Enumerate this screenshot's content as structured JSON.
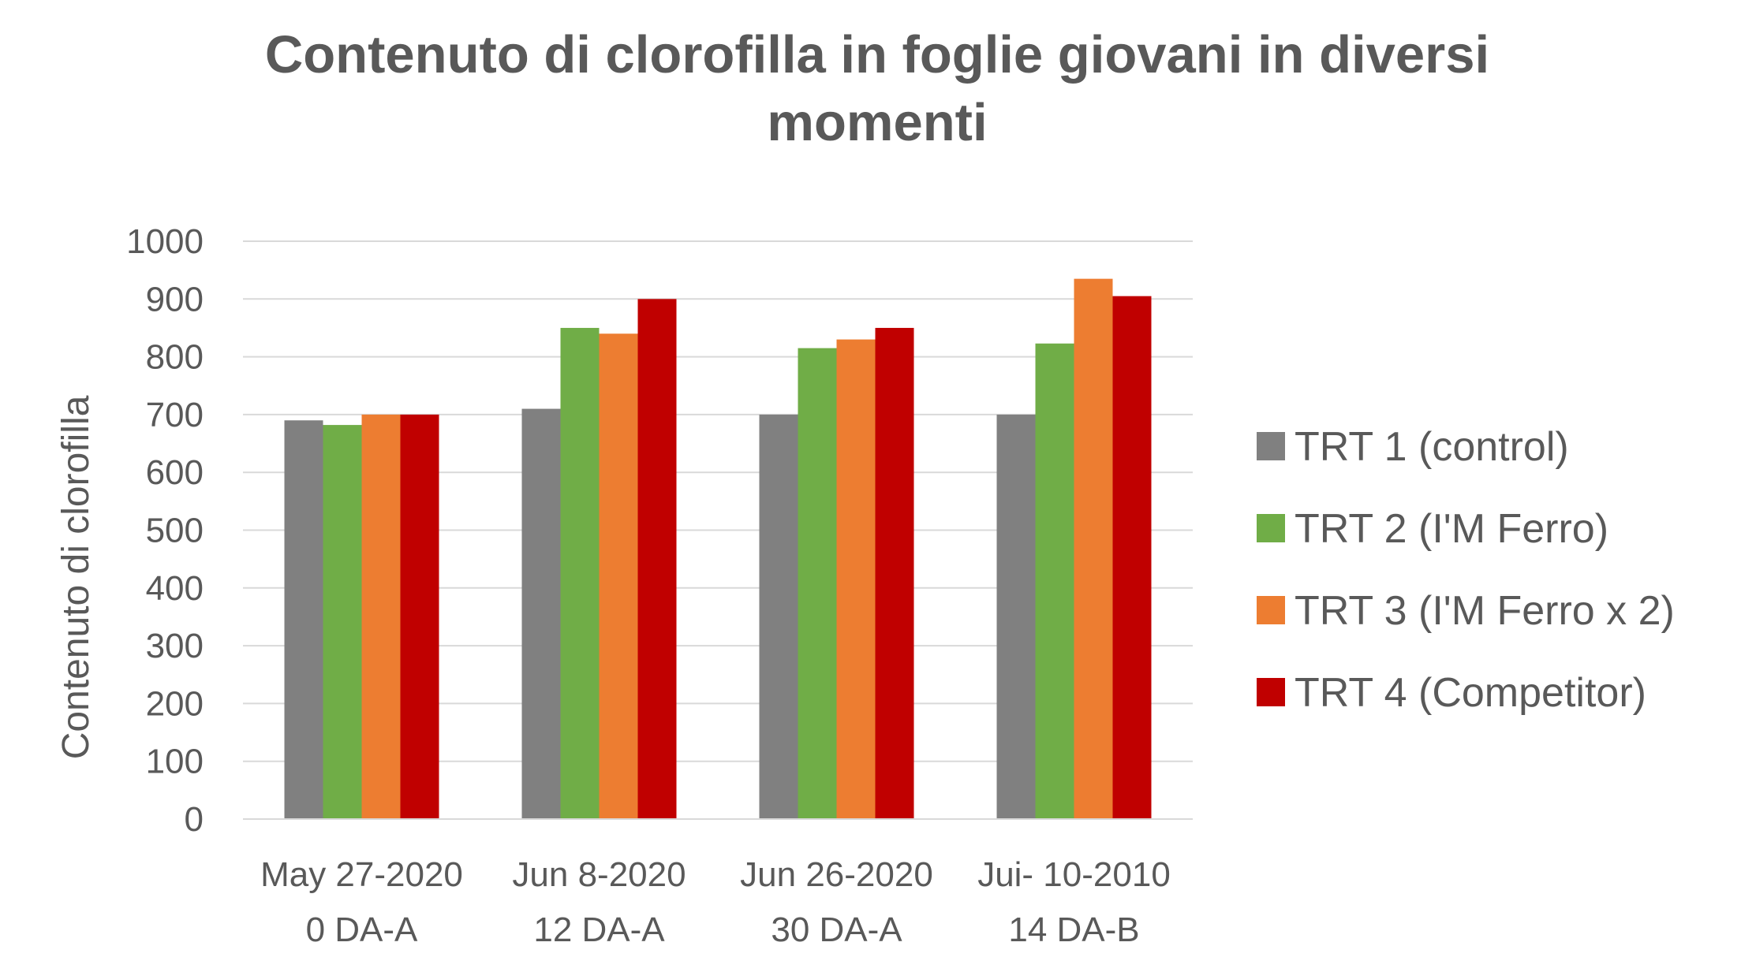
{
  "chart_data": {
    "type": "bar",
    "title_lines": [
      "Contenuto di clorofilla in foglie giovani in diversi",
      "momenti"
    ],
    "ylabel": "Contenuto di clorofilla",
    "xlabel": "",
    "ylim": [
      0,
      1000
    ],
    "yticks": [
      0,
      100,
      200,
      300,
      400,
      500,
      600,
      700,
      800,
      900,
      1000
    ],
    "grid": true,
    "legend_position": "right",
    "categories": [
      {
        "line1": "May 27-2020",
        "line2": "0 DA-A"
      },
      {
        "line1": "Jun 8-2020",
        "line2": "12 DA-A"
      },
      {
        "line1": "Jun 26-2020",
        "line2": "30 DA-A"
      },
      {
        "line1": "Jui- 10-2010",
        "line2": "14 DA-B"
      }
    ],
    "series": [
      {
        "name": "TRT 1 (control)",
        "color": "#808080",
        "values": [
          690,
          710,
          700,
          700
        ]
      },
      {
        "name": "TRT 2 (I'M Ferro)",
        "color": "#70ad47",
        "values": [
          682,
          850,
          815,
          823
        ]
      },
      {
        "name": "TRT 3 (I'M Ferro x 2)",
        "color": "#ed7d31",
        "values": [
          700,
          840,
          830,
          935
        ]
      },
      {
        "name": "TRT 4 (Competitor)",
        "color": "#c00000",
        "values": [
          700,
          900,
          850,
          905
        ]
      }
    ]
  }
}
